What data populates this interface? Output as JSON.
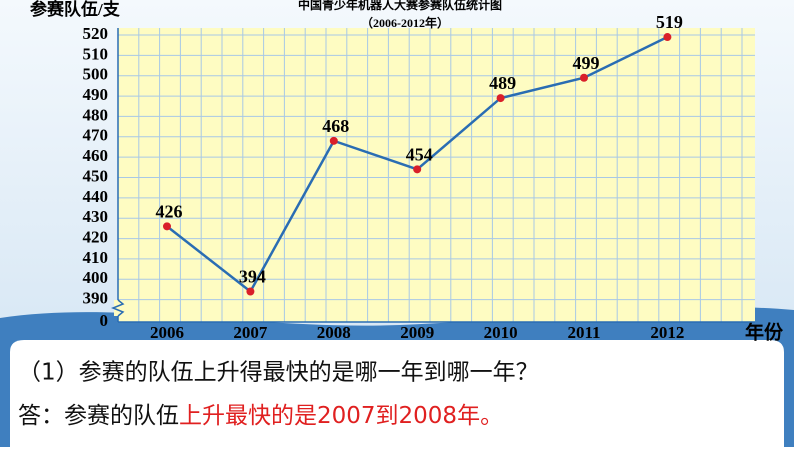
{
  "chart_data": {
    "type": "line",
    "title": "中国青少年机器人大赛参赛队伍统计图",
    "subtitle": "（2006-2012年）",
    "y_label": "参赛队伍/支",
    "x_label": "年份",
    "categories": [
      "2006",
      "2007",
      "2008",
      "2009",
      "2010",
      "2011",
      "2012"
    ],
    "series": [
      {
        "name": "参赛队伍",
        "color": "#2a6db3",
        "values": [
          426,
          394,
          468,
          454,
          489,
          499,
          519
        ]
      }
    ],
    "point_color": "#d9202a",
    "ylim": [
      380,
      520
    ],
    "yticks": [
      0,
      390,
      400,
      410,
      420,
      430,
      440,
      450,
      460,
      470,
      480,
      490,
      500,
      510,
      520
    ],
    "axis_break": true,
    "grid": true
  },
  "question": "（1）参赛的队伍上升得最快的是哪一年到哪一年？",
  "answer_prefix": "答：参赛的队伍",
  "answer_highlight": "上升最快的是2007到2008年。"
}
